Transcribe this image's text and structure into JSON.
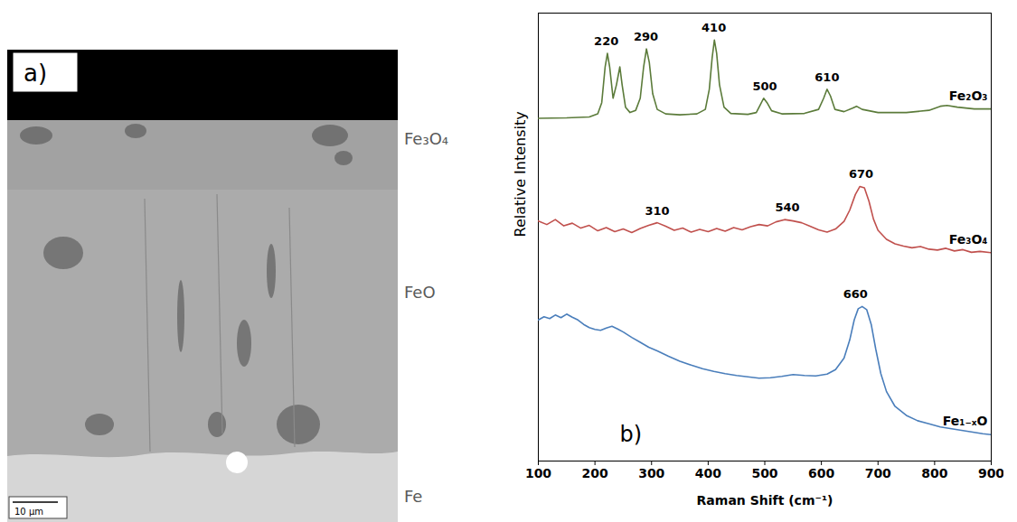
{
  "micrograph": {
    "panel_label": "a)",
    "layers": [
      "Fe₃O₄",
      "FeO",
      "Fe"
    ],
    "scale_bar": "10 µm"
  },
  "chart_data": {
    "type": "line",
    "panel_label": "b)",
    "x_label": "Raman Shift (cm⁻¹)",
    "y_label": "Relative Intensity",
    "xlim": [
      100,
      900
    ],
    "xticks": [
      100,
      200,
      300,
      400,
      500,
      600,
      700,
      800,
      900
    ],
    "ylim": [
      0,
      100
    ],
    "tick_labels": "x",
    "grid": false,
    "series": [
      {
        "name": "Fe₂O₃",
        "color": "#5b7b3a",
        "x": [
          100,
          150,
          190,
          205,
          212,
          218,
          222,
          226,
          232,
          238,
          244,
          248,
          254,
          262,
          272,
          280,
          286,
          291,
          296,
          302,
          310,
          325,
          350,
          380,
          395,
          402,
          407,
          411,
          415,
          420,
          428,
          440,
          470,
          485,
          492,
          498,
          504,
          512,
          530,
          570,
          595,
          604,
          610,
          616,
          624,
          640,
          655,
          662,
          672,
          700,
          750,
          790,
          810,
          822,
          840,
          870,
          900
        ],
        "values": [
          76.5,
          76.6,
          76.8,
          77.5,
          80,
          88,
          91,
          88,
          81,
          84,
          88,
          84,
          79,
          77.8,
          78.3,
          81,
          88,
          92,
          89,
          82,
          78.5,
          77.5,
          77.3,
          77.5,
          78.5,
          83,
          90,
          94,
          91,
          84,
          79,
          77.6,
          77.4,
          77.8,
          79.5,
          81,
          80,
          78.2,
          77.5,
          77.6,
          78.5,
          81,
          83,
          81.5,
          78.5,
          78,
          78.8,
          79.2,
          78.5,
          77.8,
          77.8,
          78.3,
          79.2,
          79.4,
          79,
          78.6,
          78.6
        ]
      },
      {
        "name": "Fe₃O₄",
        "color": "#c0504d",
        "x": [
          100,
          115,
          130,
          145,
          160,
          175,
          190,
          205,
          220,
          235,
          250,
          265,
          280,
          295,
          310,
          325,
          340,
          355,
          370,
          385,
          400,
          415,
          430,
          445,
          460,
          475,
          490,
          505,
          520,
          535,
          550,
          565,
          580,
          595,
          610,
          625,
          640,
          650,
          660,
          668,
          676,
          684,
          692,
          700,
          715,
          730,
          745,
          760,
          775,
          790,
          805,
          820,
          835,
          850,
          865,
          880,
          900
        ],
        "values": [
          53.6,
          52.8,
          53.9,
          52.5,
          53.1,
          52,
          52.6,
          51.4,
          52.1,
          51.2,
          51.8,
          51,
          51.9,
          52.6,
          53.2,
          52.4,
          51.5,
          52,
          51.1,
          51.7,
          51.2,
          51.9,
          51.3,
          52.1,
          51.6,
          52.3,
          52.8,
          52.5,
          53.4,
          53.9,
          53.6,
          53.2,
          52.4,
          51.6,
          51.1,
          51.8,
          53.5,
          56,
          59.5,
          61.3,
          61,
          58,
          54,
          51.5,
          49.5,
          48.5,
          48,
          47.6,
          47.9,
          47.3,
          47.1,
          47.5,
          46.9,
          47.2,
          46.6,
          46.8,
          46.5
        ]
      },
      {
        "name": "Fe₁₋ₓO",
        "color": "#4a7ebb",
        "x": [
          100,
          110,
          120,
          130,
          140,
          150,
          160,
          170,
          180,
          190,
          200,
          210,
          220,
          230,
          240,
          250,
          265,
          280,
          295,
          310,
          330,
          350,
          370,
          390,
          410,
          430,
          450,
          470,
          490,
          510,
          530,
          550,
          570,
          590,
          610,
          625,
          640,
          650,
          658,
          665,
          672,
          680,
          688,
          696,
          705,
          715,
          730,
          750,
          770,
          790,
          810,
          830,
          850,
          870,
          885,
          900
        ],
        "values": [
          31.5,
          32.2,
          31.8,
          32.6,
          32,
          32.8,
          32.1,
          31.5,
          30.5,
          29.8,
          29.4,
          29.2,
          29.7,
          30.1,
          29.5,
          28.8,
          27.6,
          26.5,
          25.4,
          24.6,
          23.4,
          22.3,
          21.4,
          20.6,
          20,
          19.5,
          19.1,
          18.8,
          18.5,
          18.6,
          18.9,
          19.3,
          19.1,
          19,
          19.4,
          20.4,
          23,
          27,
          31.5,
          34,
          34.5,
          33.8,
          30.5,
          25,
          19.5,
          15.5,
          12.2,
          10.2,
          9,
          8.3,
          7.6,
          7.2,
          6.8,
          6.4,
          6.1,
          5.9
        ]
      }
    ],
    "annotations": [
      {
        "series": "Fe₂O₃",
        "x": 220
      },
      {
        "series": "Fe₂O₃",
        "x": 290
      },
      {
        "series": "Fe₂O₃",
        "x": 410
      },
      {
        "series": "Fe₂O₃",
        "x": 500
      },
      {
        "series": "Fe₂O₃",
        "x": 610
      },
      {
        "series": "Fe₃O₄",
        "x": 310
      },
      {
        "series": "Fe₃O₄",
        "x": 540
      },
      {
        "series": "Fe₃O₄",
        "x": 670
      },
      {
        "series": "Fe₁₋ₓO",
        "x": 660
      }
    ]
  }
}
